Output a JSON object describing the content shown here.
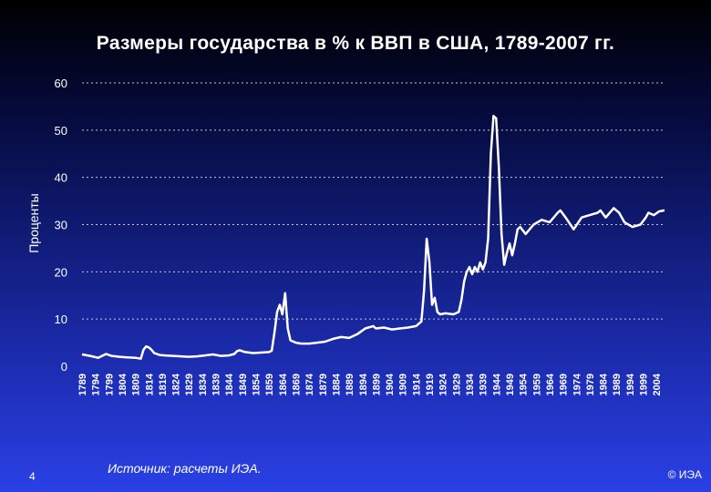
{
  "header": {
    "title": "Размеры государства в % к ВВП в США, 1789-2007 гг."
  },
  "footer": {
    "source": "Источник:  расчеты ИЭА.",
    "page_number": "4",
    "copyright": "© ИЭА"
  },
  "colors": {
    "line": "#ffffff",
    "grid": "#c8c8c8",
    "bg_top": "#000000",
    "bg_bottom": "#2a40e6"
  },
  "chart_data": {
    "type": "line",
    "title": "Размеры государства в % к ВВП в США, 1789-2007 гг.",
    "xlabel": "",
    "ylabel": "Проценты",
    "ylim": [
      0,
      60
    ],
    "xlim": [
      1789,
      2007
    ],
    "yticks": [
      "0",
      "10",
      "20",
      "30",
      "40",
      "50",
      "60"
    ],
    "xticks": [
      "1789",
      "1794",
      "1799",
      "1804",
      "1809",
      "1814",
      "1819",
      "1824",
      "1829",
      "1834",
      "1839",
      "1844",
      "1849",
      "1854",
      "1859",
      "1864",
      "1869",
      "1874",
      "1879",
      "1884",
      "1889",
      "1894",
      "1899",
      "1904",
      "1909",
      "1914",
      "1919",
      "1924",
      "1929",
      "1934",
      "1939",
      "1944",
      "1949",
      "1954",
      "1959",
      "1964",
      "1969",
      "1974",
      "1979",
      "1984",
      "1989",
      "1994",
      "1999",
      "2004"
    ],
    "grid": true,
    "legend": "none",
    "series": [
      {
        "x": [
          1789,
          1792,
          1795,
          1798,
          1800,
          1803,
          1806,
          1809,
          1811,
          1812,
          1813,
          1814,
          1815,
          1816,
          1818,
          1820,
          1823,
          1826,
          1829,
          1832,
          1835,
          1838,
          1841,
          1844,
          1846,
          1847,
          1848,
          1850,
          1853,
          1856,
          1859,
          1860,
          1861,
          1862,
          1863,
          1864,
          1865,
          1866,
          1867,
          1869,
          1871,
          1874,
          1877,
          1880,
          1883,
          1886,
          1889,
          1892,
          1895,
          1898,
          1899,
          1902,
          1905,
          1908,
          1911,
          1914,
          1916,
          1917,
          1918,
          1919,
          1920,
          1921,
          1922,
          1923,
          1925,
          1928,
          1930,
          1931,
          1932,
          1933,
          1934,
          1935,
          1936,
          1937,
          1938,
          1939,
          1940,
          1941,
          1942,
          1943,
          1944,
          1945,
          1946,
          1947,
          1948,
          1949,
          1950,
          1951,
          1952,
          1953,
          1955,
          1958,
          1961,
          1964,
          1967,
          1968,
          1970,
          1973,
          1976,
          1979,
          1982,
          1983,
          1985,
          1988,
          1990,
          1992,
          1995,
          1998,
          2000,
          2001,
          2003,
          2005,
          2007
        ],
        "y": [
          2.5,
          2.2,
          1.8,
          2.6,
          2.2,
          2.0,
          1.9,
          1.8,
          1.6,
          3.5,
          4.2,
          4.0,
          3.5,
          2.8,
          2.4,
          2.3,
          2.2,
          2.1,
          2.0,
          2.1,
          2.3,
          2.5,
          2.2,
          2.3,
          2.6,
          3.2,
          3.4,
          3.0,
          2.8,
          2.9,
          3.0,
          3.3,
          7.0,
          11.5,
          13.0,
          11.0,
          15.5,
          8.0,
          5.5,
          5.0,
          4.8,
          4.8,
          5.0,
          5.2,
          5.8,
          6.2,
          6.0,
          6.8,
          8.0,
          8.5,
          8.0,
          8.2,
          7.8,
          8.0,
          8.2,
          8.5,
          9.5,
          16.0,
          27.0,
          22.0,
          13.0,
          14.5,
          11.5,
          11.0,
          11.2,
          11.0,
          11.5,
          14.0,
          18.0,
          20.0,
          21.0,
          19.5,
          21.0,
          20.0,
          22.0,
          20.5,
          22.0,
          27.0,
          45.0,
          53.0,
          52.5,
          42.0,
          28.0,
          21.5,
          24.0,
          26.0,
          23.5,
          26.0,
          29.0,
          29.5,
          28.0,
          30.0,
          31.0,
          30.5,
          32.5,
          33.0,
          31.5,
          29.0,
          31.5,
          32.0,
          32.5,
          33.0,
          31.5,
          33.5,
          32.5,
          30.5,
          29.5,
          30.0,
          31.5,
          32.5,
          32.0,
          32.8,
          33.0
        ]
      }
    ]
  }
}
